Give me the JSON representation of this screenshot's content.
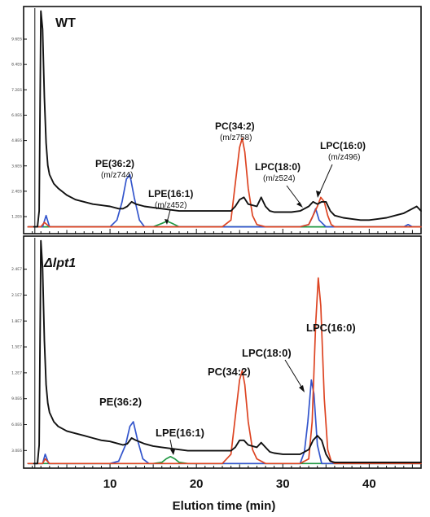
{
  "chart_data": [
    {
      "type": "line",
      "title": "WT",
      "xlabel": "Elution time (min)",
      "ylabel": "",
      "xlim": [
        0,
        46
      ],
      "ylim": [
        0,
        100
      ],
      "x_ticks": [
        10,
        20,
        30,
        40
      ],
      "x_tick_labels": [
        "",
        "",
        "",
        ""
      ],
      "y_tick_labels": [
        "9.6E6",
        "8.4E6",
        "7.2E6",
        "6.0E6",
        "4.8E6",
        "3.6E6",
        "2.4E6",
        "1.2E6"
      ],
      "series": [
        {
          "color": "#111111",
          "role": "total",
          "x": [
            1.2,
            1.6,
            1.8,
            2.0,
            2.2,
            2.4,
            2.6,
            2.8,
            3.0,
            3.5,
            4,
            5,
            6,
            7,
            8,
            9,
            10,
            11,
            11.5,
            12,
            12.5,
            13,
            14,
            15,
            16,
            17,
            18,
            19,
            20,
            21,
            22,
            23,
            24,
            24.5,
            25,
            25.5,
            26,
            27,
            27.5,
            28,
            28.5,
            29,
            30,
            31,
            32,
            33,
            33.5,
            34,
            34.5,
            35,
            35.5,
            36,
            37,
            38,
            39,
            40,
            41,
            42,
            43,
            44,
            45,
            45.5,
            46
          ],
          "y": [
            3,
            3,
            10,
            98,
            90,
            60,
            40,
            30,
            26,
            22,
            20,
            17,
            15,
            14,
            13,
            12.5,
            12,
            11,
            11,
            12,
            14,
            13,
            12,
            11.5,
            11,
            10.5,
            10,
            10,
            10,
            10,
            10,
            10,
            10,
            12,
            15,
            16,
            13,
            12,
            16,
            12,
            10,
            9.5,
            9.5,
            9.5,
            10,
            12,
            14,
            13,
            14,
            14,
            10,
            8,
            7,
            6.5,
            6,
            6,
            6.5,
            7,
            8,
            9,
            11,
            12,
            10
          ]
        },
        {
          "color": "#3355cc",
          "role": "PE",
          "x": [
            0.5,
            1.5,
            2.2,
            2.6,
            3.0,
            4,
            10,
            10.8,
            11.4,
            11.9,
            12.3,
            12.8,
            13.4,
            14,
            20,
            30,
            32,
            33,
            33.4,
            33.8,
            34.2,
            35,
            36,
            44,
            44.5,
            45,
            46
          ],
          "y": [
            3,
            3,
            3,
            8,
            3,
            3,
            3,
            6,
            14,
            24,
            26,
            16,
            6,
            3,
            3,
            3,
            3,
            4,
            7,
            11,
            6,
            3,
            3,
            3,
            4,
            3,
            3
          ]
        },
        {
          "color": "#dd4422",
          "role": "PC/LPC",
          "x": [
            0.5,
            1.5,
            2.0,
            2.4,
            3.0,
            22,
            23,
            24,
            24.5,
            25,
            25.3,
            25.6,
            26,
            26.5,
            27,
            28,
            32,
            33,
            33.5,
            34,
            34.4,
            34.8,
            35.2,
            35.6,
            36,
            37,
            46
          ],
          "y": [
            3,
            3,
            3,
            5,
            3,
            3,
            3,
            6,
            22,
            38,
            42,
            36,
            20,
            8,
            4,
            3,
            3,
            4,
            8,
            12,
            16,
            14,
            8,
            4,
            3,
            3,
            3
          ]
        },
        {
          "color": "#229944",
          "role": "LPE",
          "x": [
            0.5,
            14,
            15,
            16,
            16.6,
            17.2,
            18,
            19,
            46
          ],
          "y": [
            3,
            3,
            3,
            4.5,
            5.5,
            4.5,
            3,
            3,
            3
          ]
        }
      ],
      "annotations": [
        {
          "label": "PE(36:2)",
          "sub": "(m/z744)"
        },
        {
          "label": "LPE(16:1)",
          "sub": "(m/z452)"
        },
        {
          "label": "PC(34:2)",
          "sub": "(m/z758)"
        },
        {
          "label": "LPC(18:0)",
          "sub": "(m/z524)"
        },
        {
          "label": "LPC(16:0)",
          "sub": "(m/z496)"
        }
      ]
    },
    {
      "type": "line",
      "title": "Δlpt1",
      "xlabel": "Elution time (min)",
      "ylabel": "",
      "xlim": [
        0,
        46
      ],
      "ylim": [
        0,
        100
      ],
      "x_ticks": [
        10,
        20,
        30,
        40
      ],
      "x_tick_labels": [
        "10",
        "20",
        "30",
        "40"
      ],
      "y_tick_labels": [
        "2.4E7",
        "2.1E7",
        "1.8E7",
        "1.5E7",
        "1.2E7",
        "9.0E6",
        "6.0E6",
        "3.0E6"
      ],
      "series": [
        {
          "color": "#111111",
          "role": "total",
          "x": [
            1.2,
            1.6,
            1.8,
            2.0,
            2.2,
            2.4,
            2.6,
            2.8,
            3.0,
            3.5,
            4,
            5,
            6,
            7,
            8,
            9,
            10,
            11,
            11.5,
            12,
            12.5,
            13,
            14,
            15,
            16,
            17,
            18,
            19,
            20,
            21,
            22,
            23,
            24,
            24.5,
            25,
            25.5,
            26,
            27,
            27.5,
            28,
            28.5,
            29,
            30,
            31,
            32,
            33,
            33.5,
            34,
            34.5,
            35,
            35.5,
            36,
            37,
            38,
            39,
            40,
            41,
            42,
            43,
            44,
            45,
            45.5,
            46
          ],
          "y": [
            2,
            2,
            10,
            98,
            86,
            55,
            36,
            28,
            24,
            20,
            18,
            16,
            15,
            14,
            13,
            12,
            11.5,
            10.5,
            10,
            10.5,
            13,
            12,
            10.5,
            9.5,
            9,
            8.5,
            8,
            7.5,
            7.5,
            7.5,
            7.5,
            7.5,
            7.5,
            9,
            12,
            12,
            10,
            9,
            11,
            9,
            7,
            6.5,
            6,
            6,
            6,
            8,
            12,
            14,
            12,
            6,
            3,
            2.5,
            2.5,
            2.5,
            2.5,
            2.5,
            2.5,
            2.5,
            2.5,
            2.5,
            2.5,
            2.5,
            2.5
          ]
        },
        {
          "color": "#3355cc",
          "role": "PE",
          "x": [
            0.5,
            1.8,
            2.2,
            2.5,
            2.9,
            4,
            10,
            11,
            11.8,
            12.3,
            12.7,
            13.2,
            13.8,
            14.5,
            20,
            32,
            32.5,
            32.9,
            33.3,
            33.6,
            34,
            34.5,
            46
          ],
          "y": [
            2,
            2,
            2,
            6,
            2,
            2,
            2,
            3,
            10,
            18,
            20,
            12,
            4,
            2,
            2,
            2,
            7,
            20,
            38,
            32,
            10,
            2,
            2
          ]
        },
        {
          "color": "#dd4422",
          "role": "PC/LPC",
          "x": [
            0.5,
            1.8,
            2.2,
            2.5,
            3.0,
            22,
            23,
            24,
            24.5,
            25,
            25.3,
            25.6,
            26,
            26.5,
            27,
            28,
            32,
            33,
            33.4,
            33.8,
            34.1,
            34.4,
            34.8,
            35.2,
            35.6,
            36,
            46
          ],
          "y": [
            2,
            2,
            2,
            4,
            2,
            2,
            2,
            6,
            22,
            38,
            42,
            36,
            20,
            8,
            4,
            2,
            2,
            4,
            20,
            62,
            82,
            70,
            30,
            8,
            3,
            2,
            2
          ]
        },
        {
          "color": "#229944",
          "role": "LPE",
          "x": [
            0.5,
            15,
            16,
            16.5,
            17.0,
            17.5,
            18,
            19,
            46
          ],
          "y": [
            2,
            2,
            2.5,
            4,
            5,
            4,
            2.5,
            2,
            2
          ]
        }
      ],
      "annotations": [
        {
          "label": "PE(36:2)"
        },
        {
          "label": "LPE(16:1)"
        },
        {
          "label": "PC(34:2)"
        },
        {
          "label": "LPC(18:0)"
        },
        {
          "label": "LPC(16:0)"
        }
      ]
    }
  ]
}
